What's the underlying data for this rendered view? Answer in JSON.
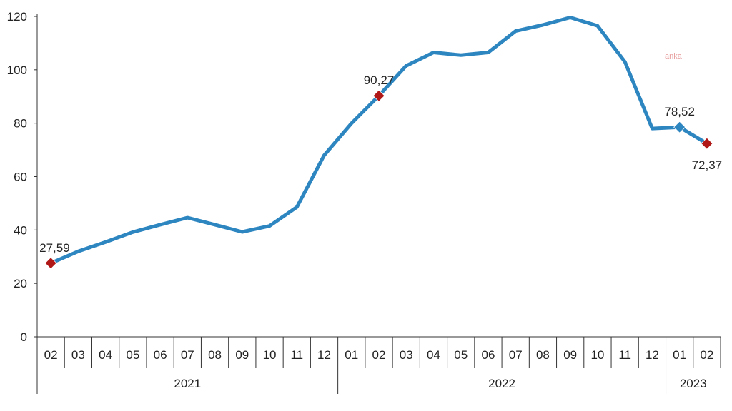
{
  "watermark": "anka",
  "chart_data": {
    "type": "line",
    "title": "",
    "xlabel": "",
    "ylabel": "",
    "ylim": [
      0,
      120
    ],
    "yticks": [
      "0",
      "20",
      "40",
      "60",
      "80",
      "100",
      "120"
    ],
    "categories": [
      "02",
      "03",
      "04",
      "05",
      "06",
      "07",
      "08",
      "09",
      "10",
      "11",
      "12",
      "01",
      "02",
      "03",
      "04",
      "05",
      "06",
      "07",
      "08",
      "09",
      "10",
      "11",
      "12",
      "01",
      "02"
    ],
    "years": [
      {
        "label": "2021",
        "count": 11
      },
      {
        "label": "2022",
        "count": 12
      },
      {
        "label": "2023",
        "count": 2
      }
    ],
    "series": [
      {
        "values": [
          27.59,
          32.0,
          35.5,
          39.2,
          42.0,
          44.6,
          42.0,
          39.3,
          41.5,
          48.6,
          68.0,
          80.0,
          90.27,
          101.5,
          106.5,
          105.5,
          106.5,
          114.5,
          116.8,
          119.6,
          116.5,
          103.0,
          78.0,
          78.52,
          72.37
        ],
        "color": "#2e86c1"
      }
    ],
    "annotations": [
      {
        "index": 0,
        "label": "27,59",
        "marker": "diamond",
        "color": "#b01818",
        "pos": "above"
      },
      {
        "index": 12,
        "label": "90,27",
        "marker": "diamond",
        "color": "#b01818",
        "pos": "above"
      },
      {
        "index": 23,
        "label": "78,52",
        "marker": "diamond",
        "color": "#2e86c1",
        "pos": "above"
      },
      {
        "index": 24,
        "label": "72,37",
        "marker": "diamond",
        "color": "#b01818",
        "pos": "below"
      }
    ],
    "grid": false,
    "legend": "none"
  }
}
